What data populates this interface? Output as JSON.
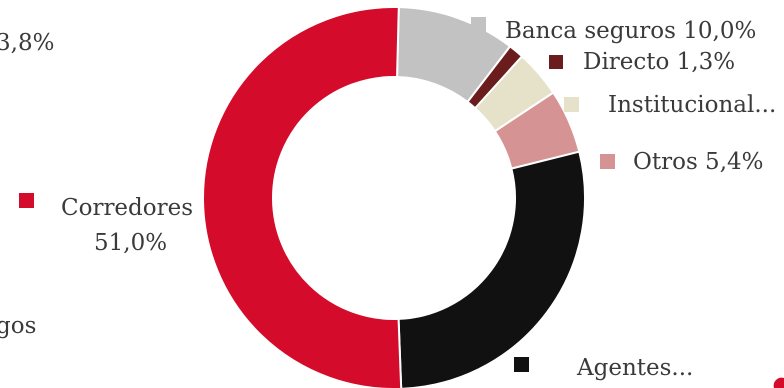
{
  "chart_data": {
    "type": "pie",
    "donut": true,
    "categories": [
      "Corredores",
      "Banca seguros",
      "Directo",
      "Institucional...",
      "Otros",
      "Agentes..."
    ],
    "values": [
      51.0,
      10.0,
      1.3,
      4.0,
      5.4,
      28.3
    ],
    "colors": [
      "#d40b2b",
      "#c2c2c2",
      "#6b1d1d",
      "#e6e1c9",
      "#d69393",
      "#111111"
    ],
    "labels": {
      "banca": "Banca seguros 10,0%",
      "directo": "Directo 1,3%",
      "institucional": "Institucional...",
      "otros": "Otros 5,4%",
      "corredores_name": "Corredores",
      "corredores_value": "51,0%",
      "agentes": "Agentes...",
      "cut_top_left": "3,8%",
      "cut_bottom_left": "gos"
    }
  }
}
